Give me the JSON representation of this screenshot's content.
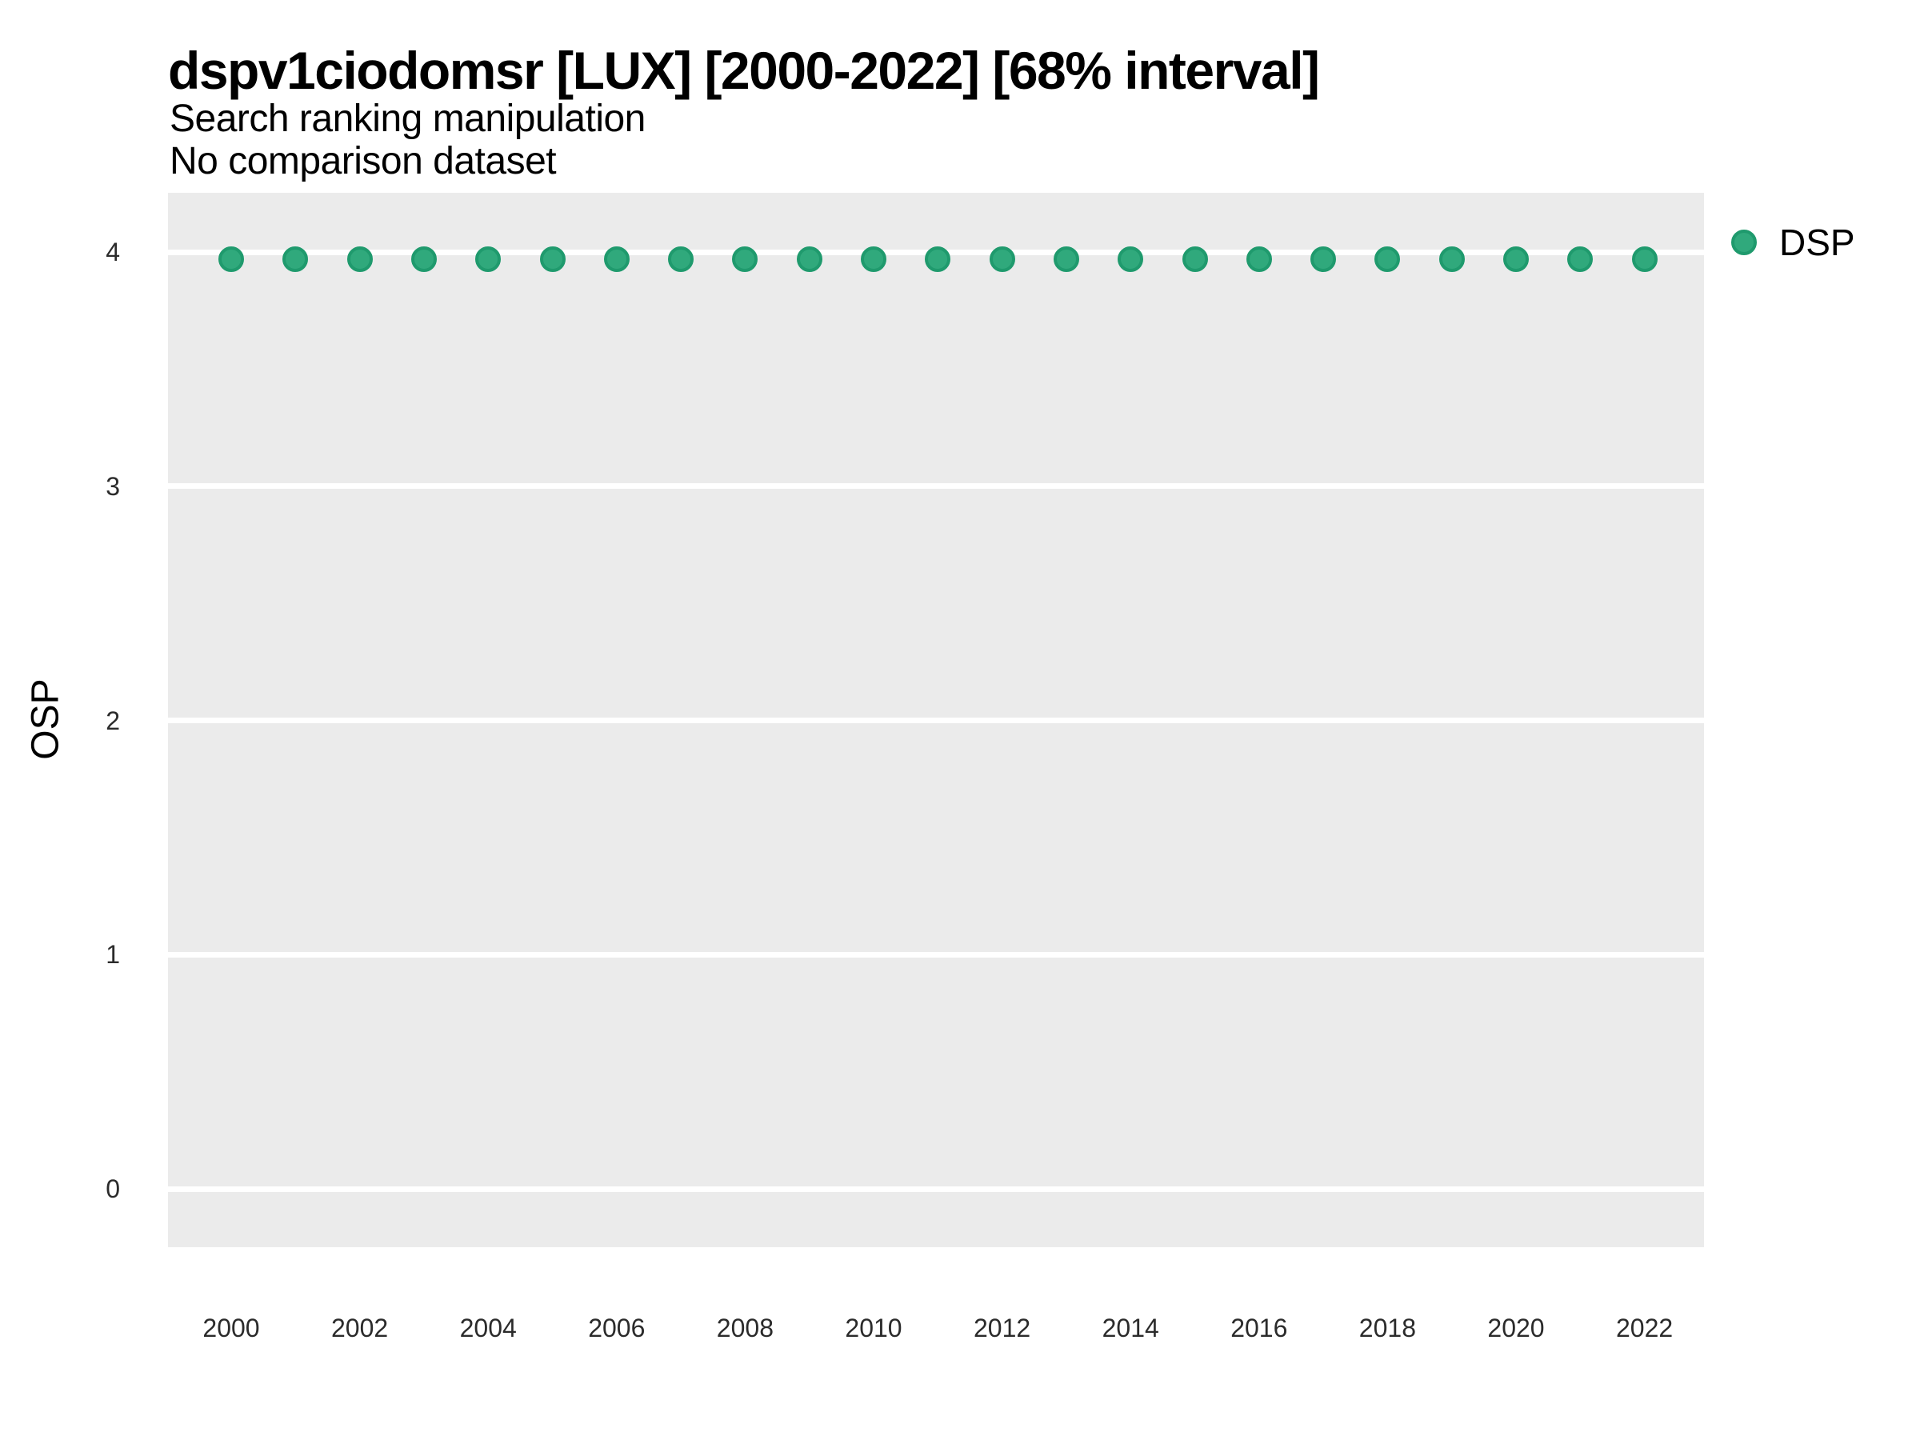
{
  "header": {
    "title": "dspv1ciodomsr [LUX] [2000-2022] [68% interval]",
    "subtitle_line1": "Search ranking manipulation",
    "subtitle_line2": "No comparison dataset"
  },
  "colors": {
    "page_bg": "#ffffff",
    "panel_bg": "#ebebeb",
    "gridline": "#ffffff",
    "point_fill": "#30a97c",
    "point_border": "#1f9a6d",
    "tick_text": "#2b2b2b",
    "title_text": "#000000"
  },
  "legend": {
    "label": "DSP",
    "swatch_icon": "circle-point-icon"
  },
  "chart_data": {
    "type": "scatter",
    "title": "dspv1ciodomsr [LUX] [2000-2022] [68% interval]",
    "subtitle": [
      "Search ranking manipulation",
      "No comparison dataset"
    ],
    "xlabel": "",
    "ylabel": "OSP",
    "x": [
      2000,
      2001,
      2002,
      2003,
      2004,
      2005,
      2006,
      2007,
      2008,
      2009,
      2010,
      2011,
      2012,
      2013,
      2014,
      2015,
      2016,
      2017,
      2018,
      2019,
      2020,
      2021,
      2022
    ],
    "series": [
      {
        "name": "DSP",
        "values": [
          3.97,
          3.97,
          3.97,
          3.97,
          3.97,
          3.97,
          3.97,
          3.97,
          3.97,
          3.97,
          3.97,
          3.97,
          3.97,
          3.97,
          3.97,
          3.97,
          3.97,
          3.97,
          3.97,
          3.97,
          3.97,
          3.97,
          3.97
        ]
      }
    ],
    "xticks": [
      2000,
      2002,
      2004,
      2006,
      2008,
      2010,
      2012,
      2014,
      2016,
      2018,
      2020,
      2022
    ],
    "yticks": [
      0,
      1,
      2,
      3,
      4
    ],
    "xlim": [
      1999,
      2023
    ],
    "ylim": [
      -0.25,
      4.25
    ],
    "grid": "horizontal-major-only",
    "legend_position": "right"
  }
}
